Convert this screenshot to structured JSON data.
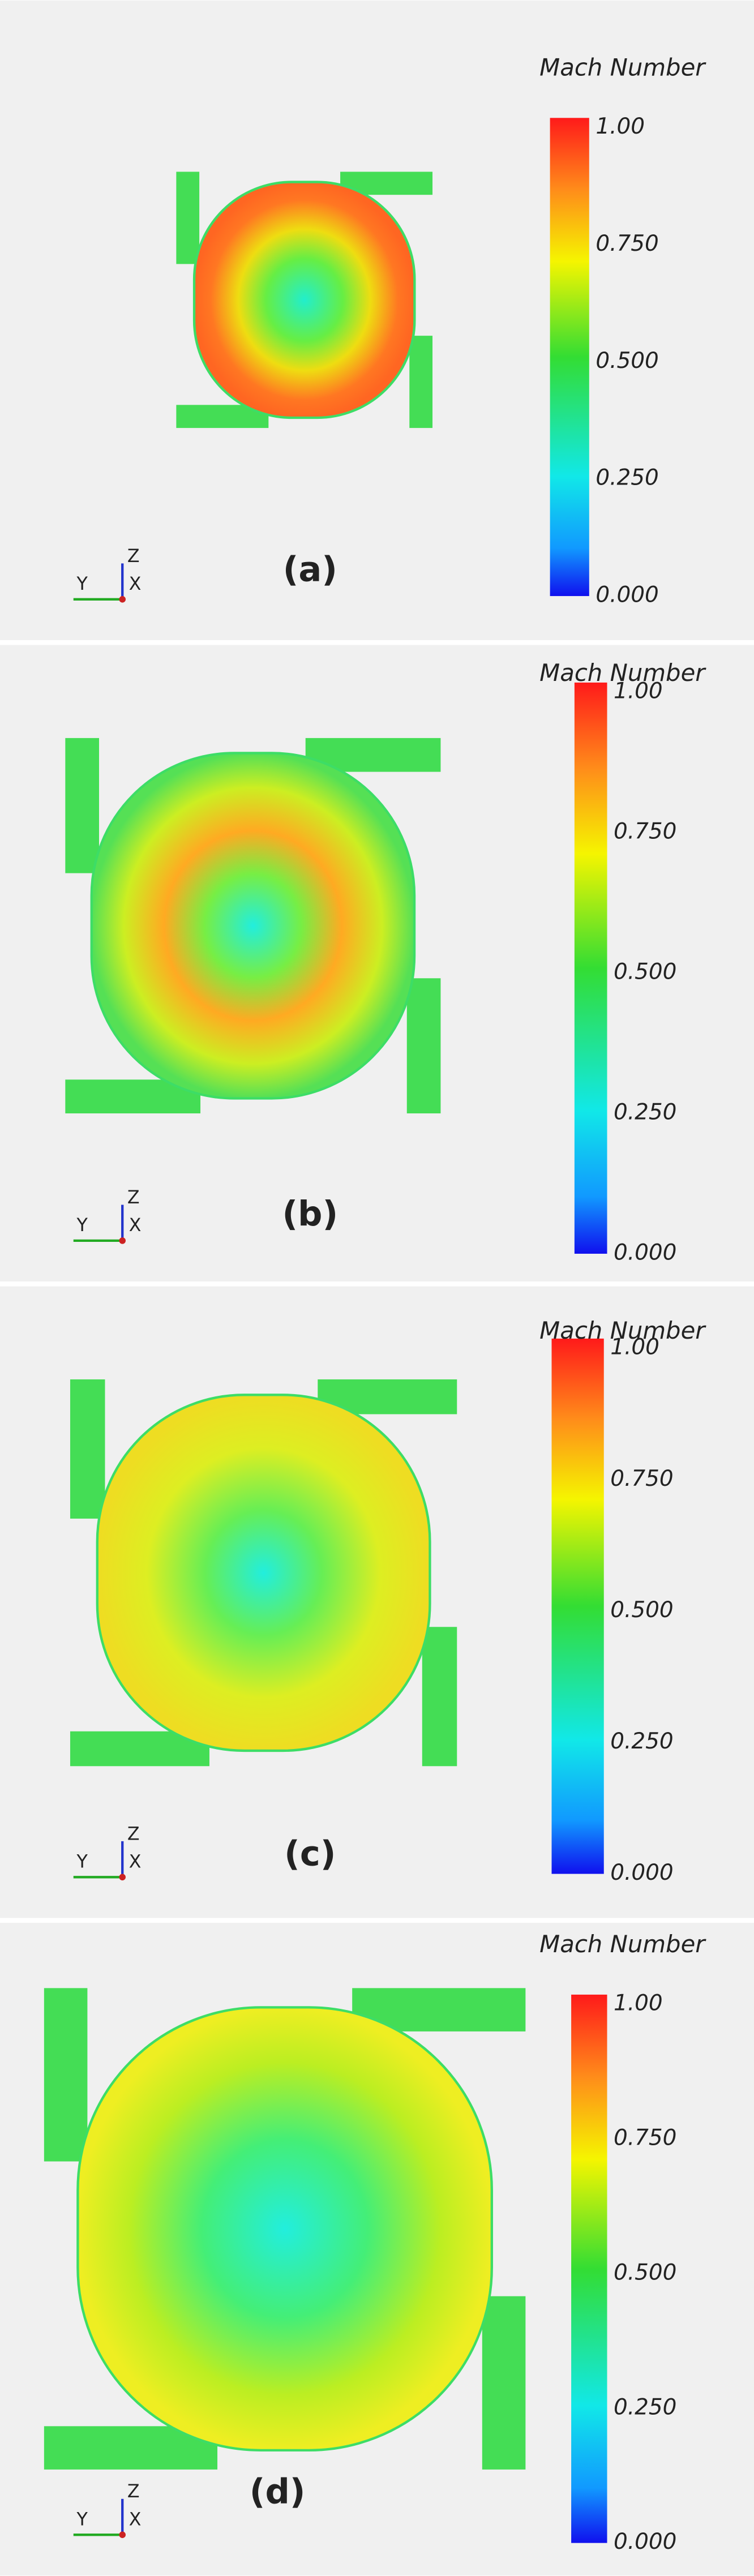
{
  "panels": [
    {
      "label": "(a)",
      "colorbar": {
        "title": "Mach Number",
        "ticks": [
          "1.00",
          "0.750",
          "0.500",
          "0.250",
          "0.000"
        ]
      },
      "axes": {
        "z": "Z",
        "y": "Y",
        "x": "X"
      }
    },
    {
      "label": "(b)",
      "colorbar": {
        "title": "Mach Number",
        "ticks": [
          "1.00",
          "0.750",
          "0.500",
          "0.250",
          "0.000"
        ]
      },
      "axes": {
        "z": "Z",
        "y": "Y",
        "x": "X"
      }
    },
    {
      "label": "(c)",
      "colorbar": {
        "title": "Mach Number",
        "ticks": [
          "1.00",
          "0.750",
          "0.500",
          "0.250",
          "0.000"
        ]
      },
      "axes": {
        "z": "Z",
        "y": "Y",
        "x": "X"
      }
    },
    {
      "label": "(d)",
      "colorbar": {
        "title": "Mach Number",
        "ticks": [
          "1.00",
          "0.750",
          "0.500",
          "0.250",
          "0.000"
        ]
      },
      "axes": {
        "z": "Z",
        "y": "Y",
        "x": "X"
      }
    }
  ]
}
